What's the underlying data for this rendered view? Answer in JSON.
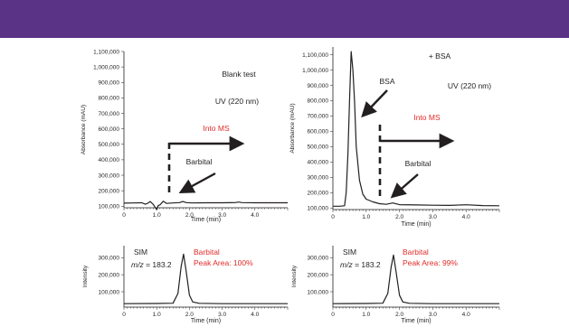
{
  "banner": {
    "color": "#5a3386"
  },
  "chart_data": [
    {
      "type": "line",
      "panel": "top-left",
      "xlabel": "Time (min)",
      "ylabel": "Absorbance (mAU)",
      "xlim": [
        0,
        5
      ],
      "ylim": [
        90000,
        1100000
      ],
      "xticks": [
        "0",
        "1.0",
        "2.0",
        "3.0",
        "4.0"
      ],
      "yticks": [
        "100,000",
        "200,000",
        "300,000",
        "400,000",
        "500,000",
        "600,000",
        "700,000",
        "800,000",
        "900,000",
        "1,000,000",
        "1,100,000"
      ],
      "annotations": {
        "title": "Blank test",
        "detector": "UV (220 nm)",
        "into_ms": "Into MS",
        "barbital": "Barbital"
      },
      "series": [
        {
          "x": [
            0,
            0.3,
            0.55,
            0.65,
            0.72,
            0.8,
            0.9,
            1.0,
            1.05,
            1.1,
            1.2,
            1.3,
            1.5,
            1.7,
            1.8,
            1.9,
            2.1,
            2.5,
            3.0,
            3.4,
            3.5,
            3.6,
            4.0,
            5.0
          ],
          "y": [
            120000,
            121000,
            122000,
            113000,
            118000,
            130000,
            110000,
            78000,
            105000,
            108000,
            132000,
            118000,
            121000,
            123000,
            130000,
            123000,
            121000,
            122000,
            122000,
            123000,
            127000,
            123000,
            122000,
            122000
          ]
        }
      ]
    },
    {
      "type": "line",
      "panel": "top-right",
      "xlabel": "Time (min)",
      "ylabel": "Absorbance (mAU)",
      "xlim": [
        0,
        5
      ],
      "ylim": [
        90000,
        1150000
      ],
      "xticks": [
        "0",
        "1.0",
        "2.0",
        "3.0",
        "4.0"
      ],
      "yticks": [
        "100,000",
        "200,000",
        "300,000",
        "400,000",
        "500,000",
        "600,000",
        "700,000",
        "800,000",
        "900,000",
        "1,000,000",
        "1,100,000"
      ],
      "annotations": {
        "title": "+ BSA",
        "protein": "BSA",
        "detector": "UV (220 nm)",
        "into_ms": "Into MS",
        "barbital": "Barbital"
      },
      "series": [
        {
          "x": [
            0,
            0.2,
            0.35,
            0.4,
            0.45,
            0.5,
            0.55,
            0.6,
            0.65,
            0.7,
            0.8,
            0.9,
            1.0,
            1.2,
            1.4,
            1.6,
            1.8,
            2.0,
            2.5,
            3.0,
            3.5,
            4.0,
            4.5,
            5.0
          ],
          "y": [
            112000,
            112000,
            115000,
            200000,
            450000,
            800000,
            1120000,
            1000000,
            800000,
            500000,
            280000,
            190000,
            158000,
            140000,
            128000,
            124000,
            133000,
            122000,
            120000,
            118000,
            117000,
            121000,
            116000,
            115000
          ]
        }
      ]
    },
    {
      "type": "line",
      "panel": "bottom-left",
      "xlabel": "Time (min)",
      "ylabel": "Intensity",
      "xlim": [
        0,
        5
      ],
      "ylim": [
        10000,
        370000
      ],
      "xticks": [
        "0",
        "1.0",
        "2.0",
        "3.0",
        "4.0"
      ],
      "yticks": [
        "100,000",
        "200,000",
        "300,000"
      ],
      "annotations": {
        "mode": "SIM",
        "mz_label": "m/z",
        "mz_value": " = 183.2",
        "compound": "Barbital",
        "peak_area": "Peak Area: 100%"
      },
      "series": [
        {
          "x": [
            0,
            1.0,
            1.5,
            1.65,
            1.75,
            1.82,
            1.9,
            2.0,
            2.1,
            2.3,
            3.0,
            4.0,
            5.0
          ],
          "y": [
            30000,
            31000,
            33000,
            90000,
            250000,
            320000,
            220000,
            80000,
            40000,
            32000,
            30000,
            30000,
            30000
          ]
        }
      ]
    },
    {
      "type": "line",
      "panel": "bottom-right",
      "xlabel": "Time (min)",
      "ylabel": "Intensity",
      "xlim": [
        0,
        5
      ],
      "ylim": [
        10000,
        370000
      ],
      "xticks": [
        "0",
        "1.0",
        "2.0",
        "3.0",
        "4.0"
      ],
      "yticks": [
        "100,000",
        "200,000",
        "300,000"
      ],
      "annotations": {
        "mode": "SIM",
        "mz_label": "m/z",
        "mz_value": " = 183.2",
        "compound": "Barbital",
        "peak_area": "Peak Area: 99%"
      },
      "series": [
        {
          "x": [
            0,
            1.0,
            1.5,
            1.65,
            1.75,
            1.82,
            1.9,
            2.0,
            2.1,
            2.3,
            3.0,
            4.0,
            5.0
          ],
          "y": [
            30000,
            31000,
            33000,
            90000,
            245000,
            315000,
            215000,
            80000,
            40000,
            32000,
            30000,
            30000,
            30000
          ]
        }
      ]
    }
  ]
}
